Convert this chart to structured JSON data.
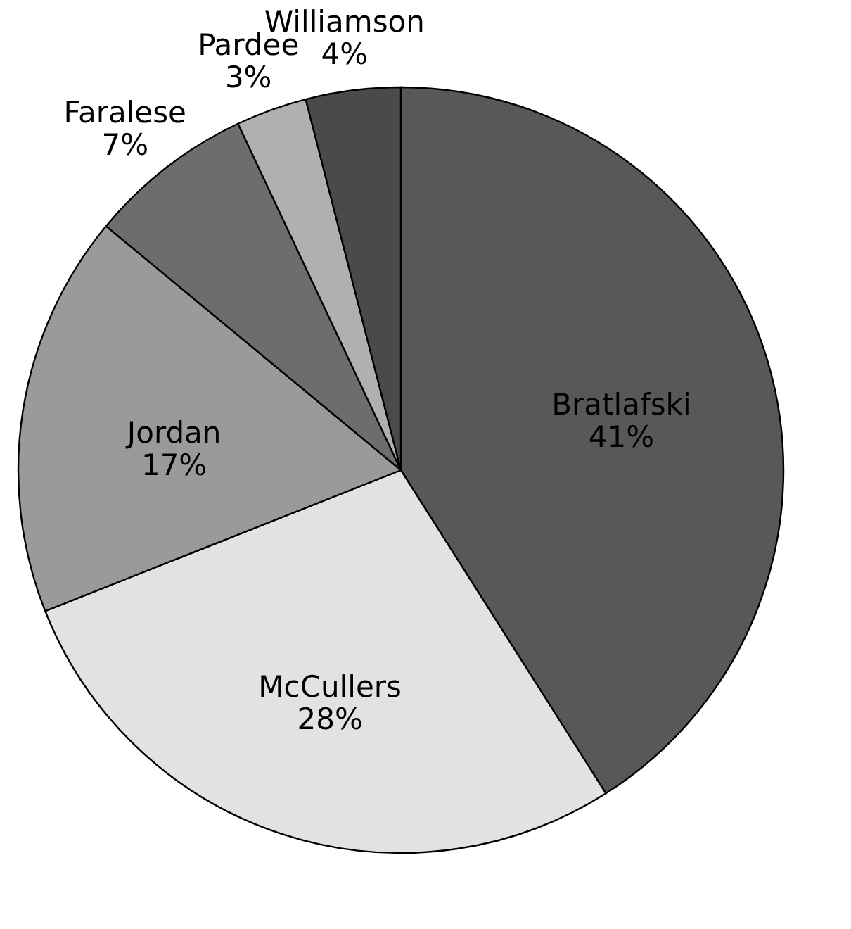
{
  "chart_data": {
    "type": "pie",
    "categories": [
      "Bratlafski",
      "McCullers",
      "Jordan",
      "Faralese",
      "Pardee",
      "Williamson"
    ],
    "values": [
      41,
      28,
      17,
      7,
      3,
      4
    ],
    "value_labels": [
      "41%",
      "28%",
      "17%",
      "7%",
      "3%",
      "4%"
    ],
    "colors": [
      "#58585a",
      "#e2e2e3",
      "#9a9a9c",
      "#6d6d6f",
      "#b0b0b2",
      "#4a4a4c"
    ],
    "legend": false
  }
}
